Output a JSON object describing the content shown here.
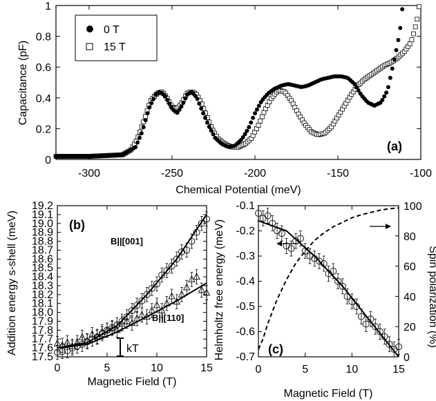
{
  "colors": {
    "ink": "#000000",
    "marker_open_fill": "#ffffff"
  },
  "chart_data": [
    {
      "panel": "a",
      "type": "scatter",
      "panel_label": "(a)",
      "xlabel": "Chemical Potential (meV)",
      "ylabel": "Capacitance (pF)",
      "xlim": [
        -320,
        -100
      ],
      "ylim": [
        0,
        1
      ],
      "xticks": [
        "-300",
        "-250",
        "-200",
        "-150",
        "-100"
      ],
      "yticks": [
        "0",
        "0.2",
        "0.4",
        "0.6",
        "0.8",
        "1"
      ],
      "legend_position": "top-left",
      "series": [
        {
          "name": "0 T",
          "marker": "filled-circle",
          "x": [
            -320,
            -300,
            -280,
            -272,
            -268,
            -264,
            -260,
            -257,
            -254,
            -250,
            -247,
            -244,
            -241,
            -238,
            -235,
            -232,
            -228,
            -224,
            -220,
            -216,
            -212,
            -208,
            -204,
            -200,
            -196,
            -192,
            -188,
            -184,
            -180,
            -176,
            -172,
            -168,
            -164,
            -160,
            -156,
            -152,
            -148,
            -144,
            -140,
            -136,
            -132,
            -128,
            -124,
            -120,
            -118,
            -116,
            -114,
            -112,
            -111
          ],
          "y": [
            0.02,
            0.02,
            0.03,
            0.08,
            0.18,
            0.33,
            0.42,
            0.44,
            0.41,
            0.33,
            0.3,
            0.35,
            0.42,
            0.44,
            0.4,
            0.32,
            0.22,
            0.14,
            0.1,
            0.08,
            0.09,
            0.13,
            0.2,
            0.3,
            0.38,
            0.43,
            0.46,
            0.48,
            0.49,
            0.48,
            0.47,
            0.48,
            0.5,
            0.52,
            0.53,
            0.54,
            0.54,
            0.53,
            0.49,
            0.42,
            0.37,
            0.35,
            0.37,
            0.45,
            0.55,
            0.65,
            0.75,
            0.88,
            1.0
          ]
        },
        {
          "name": "15 T",
          "marker": "open-square",
          "x": [
            -320,
            -300,
            -280,
            -275,
            -271,
            -267,
            -263,
            -259,
            -256,
            -253,
            -250,
            -247,
            -244,
            -241,
            -238,
            -235,
            -232,
            -229,
            -226,
            -222,
            -218,
            -214,
            -210,
            -206,
            -202,
            -198,
            -194,
            -190,
            -186,
            -182,
            -178,
            -174,
            -170,
            -166,
            -162,
            -158,
            -154,
            -150,
            -146,
            -142,
            -138,
            -134,
            -130,
            -126,
            -122,
            -118,
            -114,
            -110,
            -106,
            -104,
            -102,
            -101
          ],
          "y": [
            0.02,
            0.02,
            0.03,
            0.06,
            0.13,
            0.25,
            0.38,
            0.43,
            0.44,
            0.4,
            0.34,
            0.33,
            0.37,
            0.43,
            0.44,
            0.42,
            0.36,
            0.28,
            0.2,
            0.13,
            0.1,
            0.08,
            0.08,
            0.1,
            0.14,
            0.22,
            0.32,
            0.4,
            0.45,
            0.44,
            0.38,
            0.3,
            0.23,
            0.18,
            0.16,
            0.17,
            0.21,
            0.28,
            0.35,
            0.42,
            0.48,
            0.52,
            0.55,
            0.58,
            0.61,
            0.63,
            0.66,
            0.7,
            0.76,
            0.83,
            0.92,
            1.0
          ]
        }
      ]
    },
    {
      "panel": "b",
      "type": "scatter",
      "panel_label": "(b)",
      "xlabel": "Magnetic Field (T)",
      "ylabel": "Addition energy s-shell (meV)",
      "xlim": [
        0,
        15
      ],
      "ylim": [
        17.5,
        19.2
      ],
      "xticks": [
        "0",
        "5",
        "10",
        "15"
      ],
      "yticks": [
        "17.5",
        "17.6",
        "17.7",
        "17.8",
        "17.9",
        "18.0",
        "18.1",
        "18.2",
        "18.3",
        "18.4",
        "18.5",
        "18.6",
        "18.7",
        "18.8",
        "18.9",
        "19.0",
        "19.1",
        "19.2"
      ],
      "annotations": [
        "B||[001]",
        "B||[110]",
        "kT"
      ],
      "series": [
        {
          "name": "B||[001]",
          "marker": "open-circle",
          "error": 0.08,
          "x": [
            0,
            0.5,
            1,
            1.5,
            2,
            2.5,
            3,
            3.5,
            4,
            4.5,
            5,
            5.5,
            6,
            6.5,
            7,
            7.5,
            8,
            8.5,
            9,
            9.5,
            10,
            10.5,
            11,
            11.5,
            12,
            12.5,
            13,
            13.5,
            14,
            14.5,
            15
          ],
          "y": [
            17.55,
            17.56,
            17.57,
            17.6,
            17.62,
            17.64,
            17.67,
            17.7,
            17.72,
            17.76,
            17.8,
            17.83,
            17.86,
            17.9,
            17.95,
            18.02,
            18.08,
            18.13,
            18.2,
            18.27,
            18.32,
            18.42,
            18.47,
            18.52,
            18.6,
            18.68,
            18.7,
            18.8,
            18.9,
            19.0,
            19.05
          ],
          "fit": [
            [
              0,
              17.6
            ],
            [
              3,
              17.66
            ],
            [
              6,
              17.85
            ],
            [
              9,
              18.2
            ],
            [
              12,
              18.6
            ],
            [
              15,
              19.1
            ]
          ]
        },
        {
          "name": "B||[110]",
          "marker": "open-triangle",
          "error": 0.08,
          "x": [
            0,
            0.5,
            1,
            1.5,
            2,
            2.5,
            3,
            3.5,
            4,
            4.5,
            5,
            5.5,
            6,
            6.5,
            7,
            7.5,
            8,
            8.5,
            9,
            9.5,
            10,
            10.5,
            11,
            11.5,
            12,
            12.5,
            13,
            13.5,
            14,
            14.5,
            15
          ],
          "y": [
            17.65,
            17.63,
            17.66,
            17.62,
            17.66,
            17.72,
            17.68,
            17.75,
            17.73,
            17.78,
            17.8,
            17.82,
            17.8,
            17.87,
            17.9,
            17.88,
            17.93,
            17.97,
            17.95,
            18.02,
            18.08,
            18.02,
            18.1,
            18.18,
            18.12,
            18.2,
            18.28,
            18.37,
            18.4,
            18.25,
            18.22
          ],
          "fit": [
            [
              0,
              17.6
            ],
            [
              3,
              17.64
            ],
            [
              6,
              17.78
            ],
            [
              9,
              17.95
            ],
            [
              12,
              18.13
            ],
            [
              15,
              18.33
            ]
          ]
        }
      ]
    },
    {
      "panel": "c",
      "type": "scatter",
      "panel_label": "(c)",
      "xlabel": "Magnetic Field (T)",
      "ylabel": "Helmholtz free energy (meV)",
      "ylabel_right": "Spin polarization (%)",
      "xlim": [
        0,
        15
      ],
      "ylim": [
        -0.7,
        -0.1
      ],
      "ylim_right": [
        0,
        100
      ],
      "xticks": [
        "0",
        "5",
        "10",
        "15"
      ],
      "yticks": [
        "-0.1",
        "-0.2",
        "-0.3",
        "-0.4",
        "-0.5",
        "-0.6",
        "-0.7"
      ],
      "yticks_right": [
        "0",
        "20",
        "40",
        "60",
        "80",
        "100"
      ],
      "series": [
        {
          "name": "Helmholtz free energy",
          "marker": "open-circle",
          "error": 0.03,
          "x": [
            0,
            0.5,
            1,
            1.5,
            2,
            2.5,
            3,
            3.5,
            4,
            4.5,
            5,
            5.5,
            6,
            6.5,
            7,
            7.5,
            8,
            8.5,
            9,
            9.5,
            10,
            10.5,
            11,
            11.5,
            12,
            12.5,
            13,
            13.5,
            14,
            14.5,
            15
          ],
          "y": [
            -0.13,
            -0.15,
            -0.14,
            -0.17,
            -0.2,
            -0.21,
            -0.26,
            -0.27,
            -0.24,
            -0.23,
            -0.28,
            -0.3,
            -0.31,
            -0.32,
            -0.33,
            -0.37,
            -0.36,
            -0.4,
            -0.42,
            -0.46,
            -0.48,
            -0.5,
            -0.54,
            -0.57,
            -0.55,
            -0.58,
            -0.6,
            -0.62,
            -0.65,
            -0.67,
            -0.66
          ],
          "fit": [
            [
              0,
              -0.16
            ],
            [
              3,
              -0.2
            ],
            [
              6,
              -0.3
            ],
            [
              9,
              -0.42
            ],
            [
              12,
              -0.56
            ],
            [
              15,
              -0.7
            ]
          ]
        },
        {
          "name": "Spin polarization",
          "axis": "right",
          "style": "dashed",
          "x": [
            0,
            0.5,
            1,
            2,
            3,
            4,
            5,
            6,
            7,
            8,
            9,
            10,
            11,
            12,
            13,
            14,
            15
          ],
          "y": [
            5,
            12,
            22,
            38,
            51,
            62,
            70,
            77,
            82,
            86,
            89,
            92,
            94,
            95.5,
            97,
            98,
            98.5
          ]
        }
      ]
    }
  ]
}
